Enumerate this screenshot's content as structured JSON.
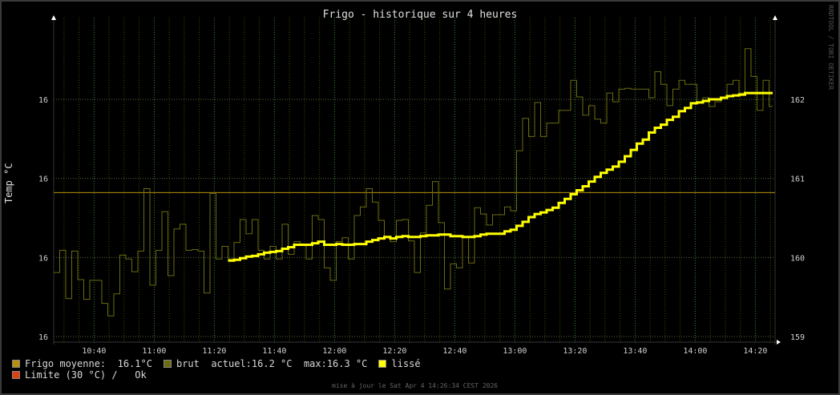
{
  "title": "Frigo - historique sur 4 heures",
  "watermark": "RRDTOOL / TOBI OETIKER",
  "updated": "mise à jour le Sat Apr  4 14:26:34 CEST 2026",
  "legend": {
    "moyenne_label": "Frigo moyenne:",
    "moyenne_value": "16.1°C",
    "brut_label": "brut",
    "actuel": "actuel:16.2 °C",
    "max": "max:16.3 °C",
    "lisse_label": "lissé",
    "limite_label": "Limite (30 °C) /",
    "limite_status": "Ok"
  },
  "colors": {
    "moyenne": "#b8900a",
    "brut": "#6b6b10",
    "lisse": "#ffff00",
    "limite": "#e04010",
    "background": "#000000"
  },
  "chart_data": {
    "type": "line",
    "title": "Frigo - historique sur 4 heures",
    "ylabel": "Temp °C",
    "xlabel": "",
    "x_range": [
      "10:26:34",
      "14:26:34"
    ],
    "x_ticks": [
      "10:40",
      "11:00",
      "11:20",
      "11:40",
      "12:00",
      "12:20",
      "12:40",
      "13:00",
      "13:20",
      "13:40",
      "14:00",
      "14:20"
    ],
    "y_ticks_left": [
      "16",
      "16",
      "16",
      "16"
    ],
    "y_ticks_right": [
      "159",
      "160",
      "161",
      "162"
    ],
    "ylim": [
      158.9,
      163.0
    ],
    "grid": true,
    "legend_position": "bottom",
    "average_line": 160.82,
    "series": [
      {
        "name": "brut",
        "start_time": "10:26:34",
        "interval_s": 120,
        "values": [
          159.81,
          160.09,
          159.48,
          160.08,
          159.72,
          159.47,
          159.71,
          159.71,
          159.42,
          159.26,
          159.54,
          160.03,
          159.98,
          159.82,
          160.08,
          160.87,
          159.65,
          160.09,
          160.58,
          159.77,
          160.36,
          160.42,
          160.09,
          160.1,
          160.08,
          159.55,
          160.81,
          159.98,
          160.14,
          159.98,
          160.19,
          160.48,
          160.3,
          160.48,
          160.09,
          159.98,
          160.14,
          159.98,
          160.42,
          160.04,
          160.2,
          160.16,
          159.98,
          160.53,
          160.48,
          159.87,
          159.71,
          160.2,
          160.25,
          159.98,
          160.53,
          160.64,
          160.87,
          160.7,
          160.47,
          160.25,
          160.2,
          160.47,
          160.48,
          160.21,
          159.81,
          160.31,
          160.66,
          160.96,
          160.44,
          159.6,
          159.92,
          159.87,
          160.25,
          159.93,
          160.63,
          160.55,
          160.41,
          160.54,
          160.54,
          160.64,
          160.59,
          161.35,
          161.76,
          161.53,
          161.96,
          161.53,
          161.7,
          161.7,
          161.86,
          161.86,
          162.24,
          162.03,
          161.8,
          161.92,
          161.75,
          161.7,
          162.08,
          161.97,
          162.13,
          162.14,
          162.13,
          162.13,
          162.13,
          162.02,
          162.35,
          162.19,
          161.92,
          162.13,
          162.24,
          162.19,
          162.19,
          161.97,
          162.02,
          161.91,
          161.97,
          162.02,
          162.19,
          162.24,
          162.08,
          162.64,
          162.29,
          161.86,
          162.24,
          161.91
        ]
      },
      {
        "name": "lissé",
        "start_time": "11:24:34",
        "interval_s": 120,
        "values": [
          159.96,
          159.97,
          159.99,
          160.01,
          160.02,
          160.04,
          160.06,
          160.07,
          160.08,
          160.11,
          160.13,
          160.16,
          160.16,
          160.16,
          160.18,
          160.2,
          160.16,
          160.16,
          160.17,
          160.16,
          160.16,
          160.17,
          160.17,
          160.2,
          160.22,
          160.24,
          160.26,
          160.24,
          160.26,
          160.27,
          160.26,
          160.26,
          160.27,
          160.28,
          160.28,
          160.29,
          160.29,
          160.27,
          160.27,
          160.26,
          160.26,
          160.27,
          160.29,
          160.3,
          160.3,
          160.3,
          160.33,
          160.35,
          160.4,
          160.45,
          160.51,
          160.55,
          160.57,
          160.6,
          160.63,
          160.69,
          160.74,
          160.8,
          160.85,
          160.9,
          160.96,
          161.02,
          161.07,
          161.11,
          161.15,
          161.21,
          161.28,
          161.36,
          161.44,
          161.49,
          161.58,
          161.64,
          161.68,
          161.74,
          161.78,
          161.85,
          161.89,
          161.95,
          161.96,
          161.98,
          162.0,
          162.0,
          162.02,
          162.04,
          162.05,
          162.06,
          162.08,
          162.08,
          162.08,
          162.08,
          162.08
        ]
      }
    ]
  }
}
